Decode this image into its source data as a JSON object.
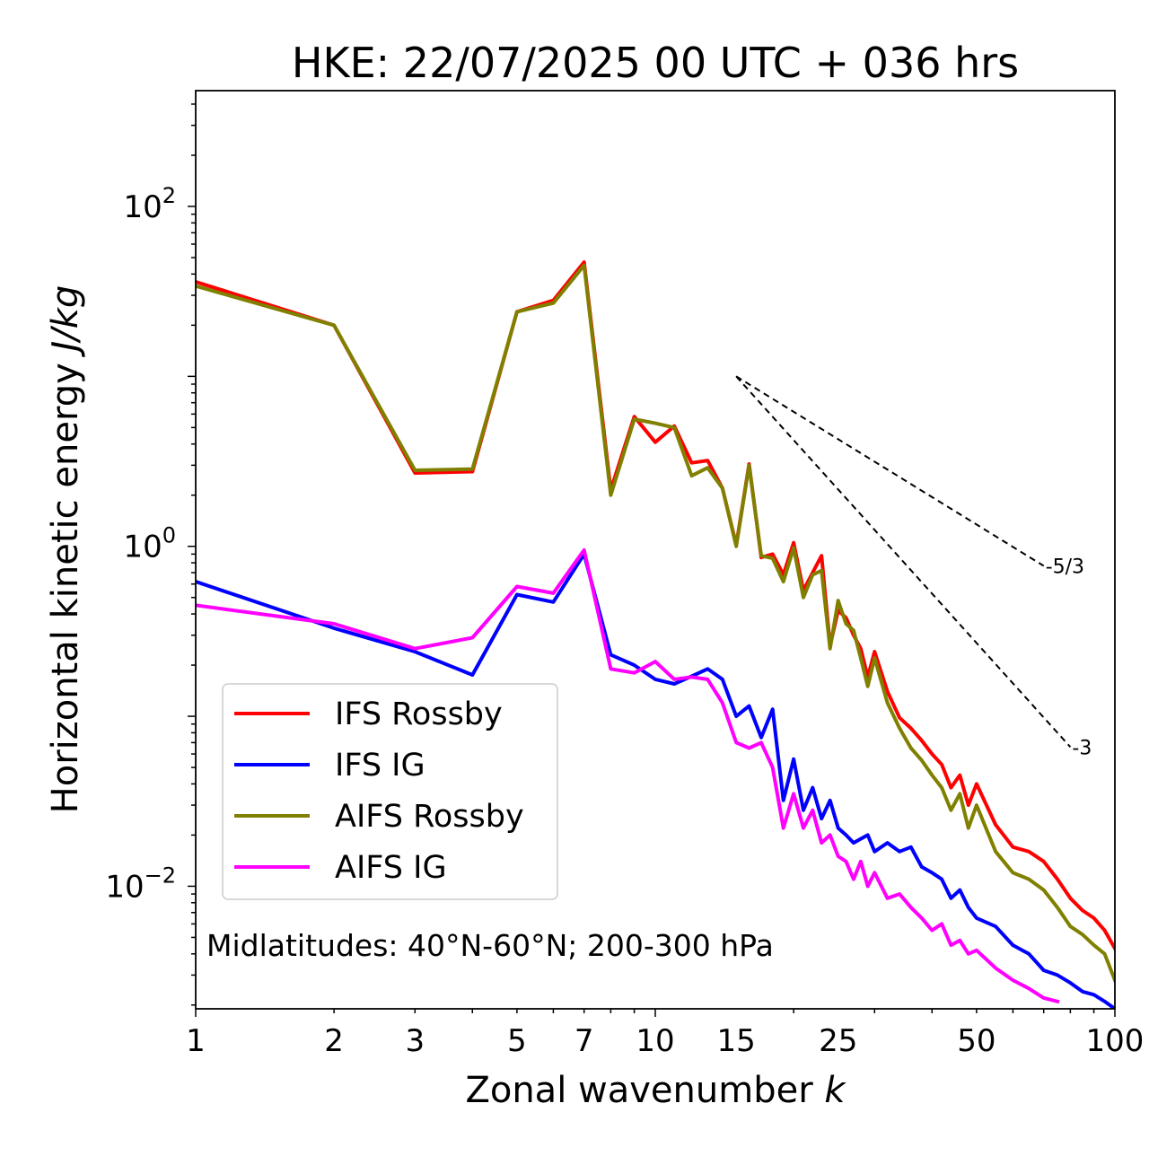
{
  "chart_data": {
    "type": "line",
    "title": "HKE: 22/07/2025 00 UTC + 036 hrs",
    "xlabel": "Zonal wavenumber ",
    "xlabel_var": "k",
    "ylabel": "Horizontal kinetic energy ",
    "ylabel_unit": "J/kg",
    "xscale": "log",
    "yscale": "log",
    "xlim": [
      1,
      100
    ],
    "ylim": [
      0.0019,
      480
    ],
    "x_ticks": [
      {
        "value": 1,
        "label": "1"
      },
      {
        "value": 2,
        "label": "2"
      },
      {
        "value": 3,
        "label": "3"
      },
      {
        "value": 5,
        "label": "5"
      },
      {
        "value": 7,
        "label": "7"
      },
      {
        "value": 10,
        "label": "10"
      },
      {
        "value": 15,
        "label": "15"
      },
      {
        "value": 25,
        "label": "25"
      },
      {
        "value": 50,
        "label": "50"
      },
      {
        "value": 100,
        "label": "100"
      }
    ],
    "y_ticks": [
      {
        "value": 100,
        "base": "10",
        "exp": "2"
      },
      {
        "value": 1,
        "base": "10",
        "exp": "0"
      },
      {
        "value": 0.01,
        "base": "10",
        "exp": "−2"
      }
    ],
    "legend_position": "lower-left",
    "annotation": "Midlatitudes: 40°N-60°N; 200-300 hPa",
    "reference_lines": [
      {
        "label": "-5/3",
        "slope": -1.6667,
        "x_start": 15,
        "x_end": 70,
        "y_start": 10
      },
      {
        "label": "-3",
        "slope": -3,
        "x_start": 15,
        "x_end": 80,
        "y_start": 10
      }
    ],
    "series": [
      {
        "name": "IFS Rossby",
        "color": "#ff0000",
        "x": [
          1,
          2,
          3,
          4,
          5,
          6,
          7,
          8,
          9,
          10,
          11,
          12,
          13,
          14,
          15,
          16,
          17,
          18,
          19,
          20,
          21,
          22,
          23,
          24,
          25,
          26,
          27,
          28,
          29,
          30,
          32,
          34,
          36,
          38,
          40,
          42,
          44,
          46,
          48,
          50,
          55,
          60,
          65,
          70,
          75,
          80,
          85,
          90,
          95,
          100
        ],
        "y": [
          36,
          20,
          2.7,
          2.75,
          24,
          28,
          47,
          2.15,
          5.8,
          4.1,
          5.1,
          3.1,
          3.2,
          2.2,
          1.02,
          3.05,
          0.86,
          0.9,
          0.68,
          1.05,
          0.55,
          0.7,
          0.88,
          0.26,
          0.42,
          0.38,
          0.3,
          0.25,
          0.17,
          0.24,
          0.14,
          0.098,
          0.085,
          0.072,
          0.06,
          0.052,
          0.038,
          0.045,
          0.03,
          0.04,
          0.023,
          0.017,
          0.016,
          0.014,
          0.011,
          0.0085,
          0.0072,
          0.0065,
          0.0055,
          0.0043
        ]
      },
      {
        "name": "IFS IG",
        "color": "#0000ff",
        "x": [
          1,
          2,
          3,
          4,
          5,
          6,
          7,
          8,
          9,
          10,
          11,
          12,
          13,
          14,
          15,
          16,
          17,
          18,
          19,
          20,
          21,
          22,
          23,
          24,
          25,
          26,
          27,
          28,
          29,
          30,
          32,
          34,
          36,
          38,
          40,
          42,
          44,
          46,
          48,
          50,
          55,
          60,
          65,
          70,
          75,
          80,
          85,
          90,
          95,
          100
        ],
        "y": [
          0.62,
          0.33,
          0.24,
          0.175,
          0.52,
          0.47,
          0.9,
          0.23,
          0.2,
          0.165,
          0.155,
          0.172,
          0.19,
          0.165,
          0.1,
          0.115,
          0.075,
          0.11,
          0.032,
          0.056,
          0.028,
          0.038,
          0.025,
          0.032,
          0.022,
          0.02,
          0.018,
          0.019,
          0.02,
          0.016,
          0.018,
          0.016,
          0.017,
          0.013,
          0.012,
          0.011,
          0.0085,
          0.0095,
          0.0075,
          0.0065,
          0.0058,
          0.0045,
          0.004,
          0.0032,
          0.003,
          0.0027,
          0.0024,
          0.0023,
          0.0021,
          0.0019
        ]
      },
      {
        "name": "AIFS Rossby",
        "color": "#808000",
        "x": [
          1,
          2,
          3,
          4,
          5,
          6,
          7,
          8,
          9,
          10,
          11,
          12,
          13,
          14,
          15,
          16,
          17,
          18,
          19,
          20,
          21,
          22,
          23,
          24,
          25,
          26,
          27,
          28,
          29,
          30,
          32,
          34,
          36,
          38,
          40,
          42,
          44,
          46,
          48,
          50,
          55,
          60,
          65,
          70,
          75,
          80,
          85,
          90,
          95,
          100
        ],
        "y": [
          34,
          20,
          2.8,
          2.85,
          24,
          27,
          45,
          2.0,
          5.6,
          5.3,
          5.0,
          2.6,
          2.9,
          2.2,
          1.0,
          3.0,
          0.88,
          0.85,
          0.62,
          0.98,
          0.5,
          0.68,
          0.72,
          0.25,
          0.48,
          0.35,
          0.32,
          0.22,
          0.15,
          0.22,
          0.12,
          0.085,
          0.065,
          0.055,
          0.045,
          0.038,
          0.028,
          0.035,
          0.022,
          0.03,
          0.016,
          0.012,
          0.011,
          0.0095,
          0.0075,
          0.0058,
          0.0052,
          0.0045,
          0.004,
          0.0028
        ]
      },
      {
        "name": "AIFS IG",
        "color": "#ff00ff",
        "x": [
          1,
          2,
          3,
          4,
          5,
          6,
          7,
          8,
          9,
          10,
          11,
          12,
          13,
          14,
          15,
          16,
          17,
          18,
          19,
          20,
          21,
          22,
          23,
          24,
          25,
          26,
          27,
          28,
          29,
          30,
          32,
          34,
          36,
          38,
          40,
          42,
          44,
          46,
          48,
          50,
          55,
          60,
          65,
          70,
          75
        ],
        "y": [
          0.45,
          0.35,
          0.25,
          0.29,
          0.58,
          0.53,
          0.95,
          0.19,
          0.18,
          0.21,
          0.165,
          0.17,
          0.165,
          0.12,
          0.07,
          0.065,
          0.07,
          0.05,
          0.022,
          0.035,
          0.022,
          0.028,
          0.018,
          0.02,
          0.015,
          0.014,
          0.011,
          0.014,
          0.01,
          0.012,
          0.0085,
          0.009,
          0.0075,
          0.0065,
          0.0055,
          0.006,
          0.0045,
          0.0048,
          0.004,
          0.0042,
          0.0033,
          0.0028,
          0.0025,
          0.0022,
          0.0021
        ]
      }
    ]
  }
}
